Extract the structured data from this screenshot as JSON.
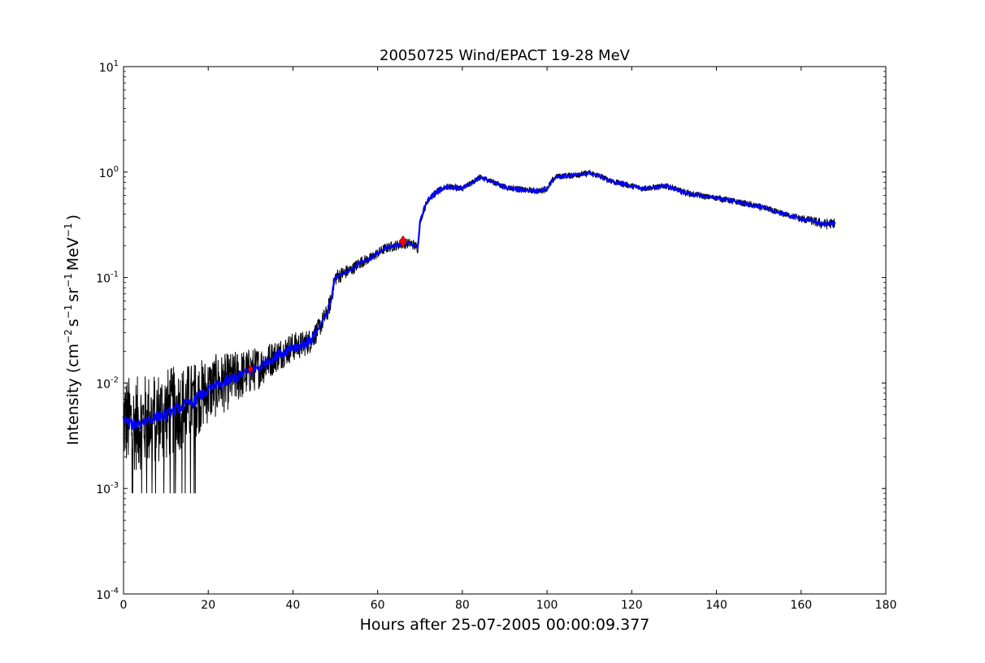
{
  "chart_data": {
    "type": "line",
    "title": "20050725 Wind/EPACT 19-28 MeV",
    "xlabel": "Hours after 25-07-2005 00:00:09.377",
    "ylabel": {
      "prefix": "Intensity (cm",
      "exp1": "−2",
      "mid1": "s",
      "exp2": "−1",
      "mid2": "sr",
      "exp3": "−1",
      "mid3": "MeV",
      "exp4": "−1",
      "suffix": ")"
    },
    "xlim": [
      0,
      180
    ],
    "ylim": [
      0.0001,
      10
    ],
    "yscale": "log",
    "grid": false,
    "xticks": [
      0,
      20,
      40,
      60,
      80,
      100,
      120,
      140,
      160,
      180
    ],
    "yticks": [
      {
        "value": 0.0001,
        "base": "10",
        "exp": "-4"
      },
      {
        "value": 0.001,
        "base": "10",
        "exp": "-3"
      },
      {
        "value": 0.01,
        "base": "10",
        "exp": "-2"
      },
      {
        "value": 0.1,
        "base": "10",
        "exp": "-1"
      },
      {
        "value": 1,
        "base": "10",
        "exp": "0"
      },
      {
        "value": 10,
        "base": "10",
        "exp": "1"
      }
    ],
    "series": [
      {
        "color": "#000000",
        "role": "raw",
        "x": [
          0,
          2,
          4,
          6,
          8,
          10,
          12,
          14,
          16,
          18,
          20,
          22,
          24,
          26,
          28,
          30,
          32,
          34,
          36,
          38,
          40,
          42,
          44,
          46,
          48,
          49,
          50,
          52,
          54,
          56,
          58,
          60,
          62,
          64,
          66,
          68,
          69.5,
          70,
          71,
          72,
          74,
          76,
          78,
          80,
          82,
          84,
          86,
          88,
          90,
          92,
          94,
          96,
          98,
          100,
          102,
          104,
          106,
          108,
          110,
          112,
          114,
          116,
          118,
          120,
          122,
          124,
          126,
          128,
          130,
          132,
          134,
          136,
          138,
          140,
          142,
          144,
          146,
          148,
          150,
          152,
          154,
          156,
          158,
          160,
          162,
          164,
          166,
          168
        ],
        "values": [
          0.0045,
          0.004,
          0.0042,
          0.0045,
          0.0048,
          0.005,
          0.0055,
          0.006,
          0.0065,
          0.0075,
          0.0085,
          0.0095,
          0.01,
          0.011,
          0.012,
          0.013,
          0.014,
          0.016,
          0.018,
          0.02,
          0.022,
          0.023,
          0.025,
          0.032,
          0.045,
          0.06,
          0.1,
          0.11,
          0.12,
          0.14,
          0.15,
          0.17,
          0.19,
          0.2,
          0.21,
          0.21,
          0.19,
          0.33,
          0.45,
          0.55,
          0.65,
          0.72,
          0.72,
          0.7,
          0.78,
          0.88,
          0.85,
          0.78,
          0.72,
          0.7,
          0.68,
          0.67,
          0.66,
          0.7,
          0.9,
          0.92,
          0.93,
          0.95,
          0.98,
          0.93,
          0.86,
          0.8,
          0.77,
          0.74,
          0.7,
          0.71,
          0.72,
          0.74,
          0.7,
          0.65,
          0.62,
          0.6,
          0.58,
          0.57,
          0.55,
          0.53,
          0.51,
          0.49,
          0.47,
          0.45,
          0.42,
          0.4,
          0.38,
          0.36,
          0.35,
          0.33,
          0.32,
          0.33
        ],
        "noise": [
          0.45,
          0.45,
          0.45,
          0.45,
          0.45,
          0.45,
          0.42,
          0.4,
          0.38,
          0.35,
          0.32,
          0.3,
          0.28,
          0.26,
          0.24,
          0.22,
          0.2,
          0.18,
          0.16,
          0.15,
          0.14,
          0.13,
          0.12,
          0.1,
          0.09,
          0.09,
          0.08,
          0.07,
          0.06,
          0.06,
          0.05,
          0.05,
          0.05,
          0.05,
          0.05,
          0.05,
          0.05,
          0.04,
          0.04,
          0.03,
          0.03,
          0.03,
          0.03,
          0.03,
          0.03,
          0.03,
          0.03,
          0.03,
          0.03,
          0.03,
          0.03,
          0.03,
          0.03,
          0.03,
          0.03,
          0.03,
          0.03,
          0.03,
          0.03,
          0.03,
          0.03,
          0.03,
          0.03,
          0.03,
          0.03,
          0.03,
          0.03,
          0.03,
          0.03,
          0.03,
          0.03,
          0.03,
          0.03,
          0.03,
          0.03,
          0.03,
          0.03,
          0.03,
          0.03,
          0.03,
          0.03,
          0.03,
          0.03,
          0.04,
          0.04,
          0.05,
          0.05,
          0.05
        ]
      },
      {
        "color": "#0000ff",
        "role": "smoothed",
        "x": [
          0,
          2,
          4,
          6,
          8,
          10,
          12,
          14,
          16,
          18,
          20,
          22,
          24,
          26,
          28,
          30,
          32,
          34,
          36,
          38,
          40,
          42,
          44,
          46,
          48,
          49,
          50,
          52,
          54,
          56,
          58,
          60,
          62,
          64,
          66,
          68,
          69.5,
          70,
          71,
          72,
          74,
          76,
          78,
          80,
          82,
          84,
          86,
          88,
          90,
          92,
          94,
          96,
          98,
          100,
          102,
          104,
          106,
          108,
          110,
          112,
          114,
          116,
          118,
          120,
          122,
          124,
          126,
          128,
          130,
          132,
          134,
          136,
          138,
          140,
          142,
          144,
          146,
          148,
          150,
          152,
          154,
          156,
          158,
          160,
          162,
          164,
          166,
          168
        ],
        "values": [
          0.0045,
          0.004,
          0.0042,
          0.0045,
          0.0048,
          0.005,
          0.0055,
          0.006,
          0.0065,
          0.0075,
          0.0085,
          0.0095,
          0.01,
          0.011,
          0.012,
          0.013,
          0.014,
          0.016,
          0.018,
          0.02,
          0.022,
          0.023,
          0.025,
          0.032,
          0.045,
          0.06,
          0.1,
          0.11,
          0.12,
          0.14,
          0.15,
          0.17,
          0.19,
          0.2,
          0.21,
          0.21,
          0.19,
          0.33,
          0.45,
          0.55,
          0.65,
          0.72,
          0.72,
          0.7,
          0.78,
          0.88,
          0.85,
          0.78,
          0.72,
          0.7,
          0.68,
          0.67,
          0.66,
          0.7,
          0.9,
          0.92,
          0.93,
          0.95,
          0.98,
          0.93,
          0.86,
          0.8,
          0.77,
          0.74,
          0.7,
          0.71,
          0.72,
          0.74,
          0.7,
          0.65,
          0.62,
          0.6,
          0.58,
          0.57,
          0.55,
          0.53,
          0.51,
          0.49,
          0.47,
          0.45,
          0.42,
          0.4,
          0.38,
          0.36,
          0.35,
          0.33,
          0.32,
          0.33
        ]
      }
    ],
    "markers": [
      {
        "x": 30,
        "y": 0.0135,
        "color": "#ff0000",
        "size": "small",
        "shape": "diamond"
      },
      {
        "x": 66,
        "y": 0.22,
        "color": "#ff0000",
        "size": "large",
        "shape": "diamond"
      }
    ]
  }
}
